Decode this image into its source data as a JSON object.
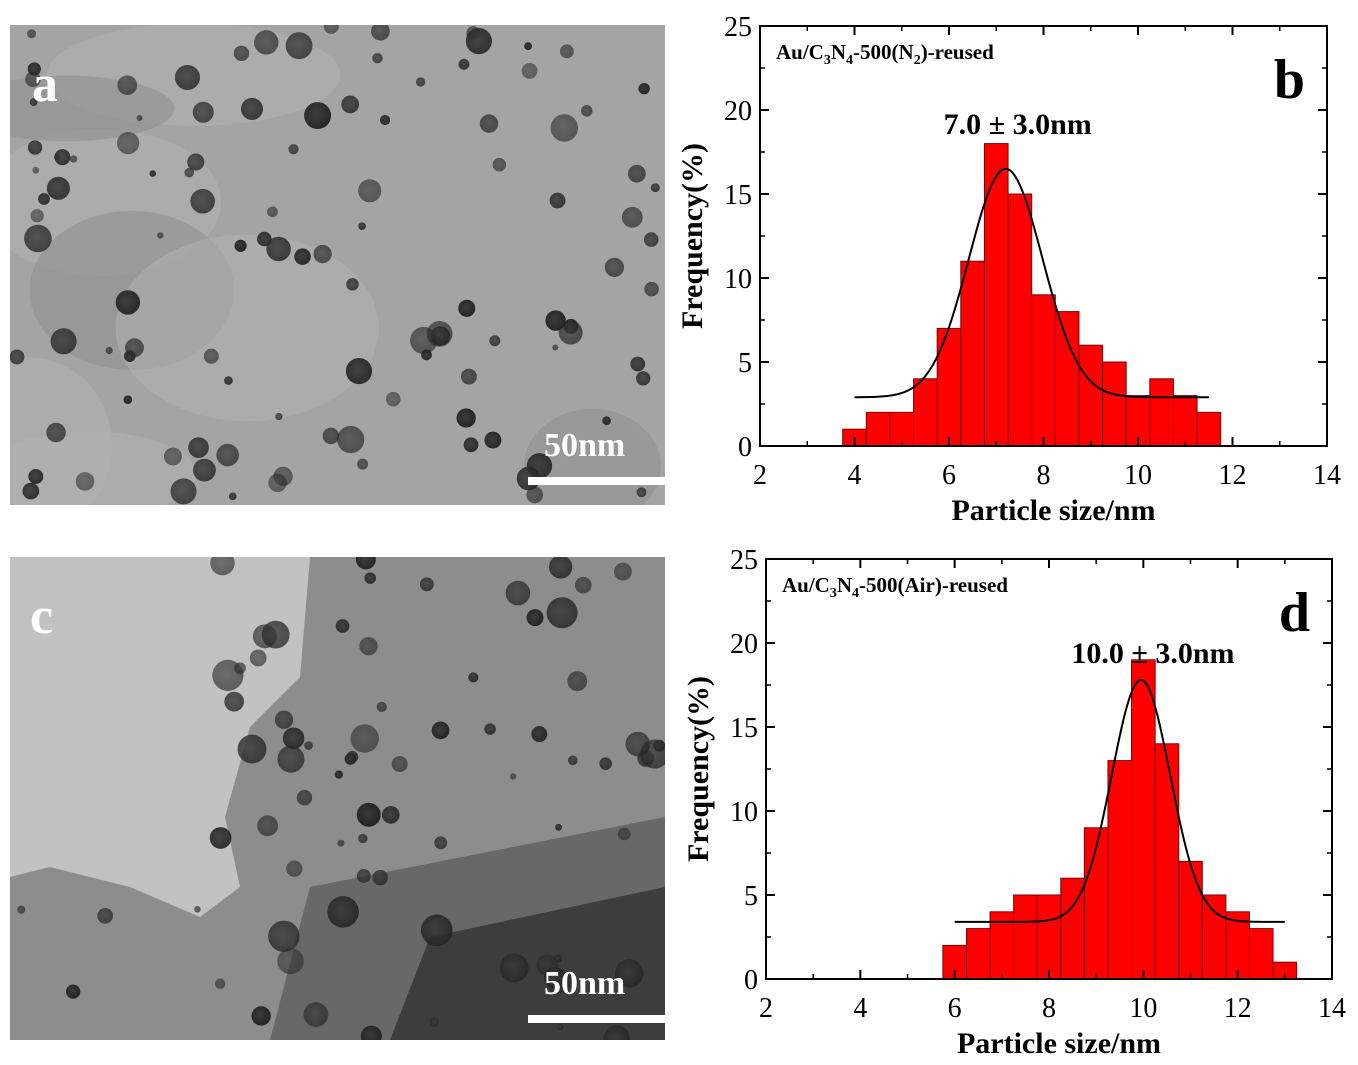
{
  "panels": {
    "a": {
      "letter": "a",
      "scale_label": "50nm"
    },
    "c": {
      "letter": "c",
      "scale_label": "50nm"
    }
  },
  "chart_data": [
    {
      "panel": "b",
      "type": "bar",
      "letter": "b",
      "annotation": "7.0 ± 3.0nm",
      "legend": {
        "prefix": "Au/C",
        "sub1": "3",
        "mid": "N",
        "sub2": "4",
        "suffix1": "-500(N",
        "sub3": "2",
        "suffix2": ")-reused"
      },
      "xlabel": "Particle size/nm",
      "ylabel": "Frequency(%)",
      "xlim": [
        2,
        14
      ],
      "ylim": [
        0,
        25
      ],
      "xticks": [
        2,
        4,
        6,
        8,
        10,
        12,
        14
      ],
      "yticks": [
        0,
        5,
        10,
        15,
        20,
        25
      ],
      "bar_width": 0.5,
      "x": [
        4.0,
        4.5,
        5.0,
        5.5,
        6.0,
        6.5,
        7.0,
        7.5,
        8.0,
        8.5,
        9.0,
        9.5,
        10.0,
        10.5,
        11.0,
        11.5
      ],
      "values": [
        1,
        2,
        2,
        4,
        7,
        11,
        18,
        15,
        9,
        8,
        6,
        5,
        3,
        4,
        3,
        2
      ],
      "fit": {
        "type": "gaussian",
        "baseline": 2.9,
        "amplitude": 13.6,
        "center": 7.2,
        "sigma": 0.78,
        "xrange": [
          4.0,
          11.5
        ]
      },
      "bar_color": "#ff0000"
    },
    {
      "panel": "d",
      "type": "bar",
      "letter": "d",
      "annotation": "10.0 ± 3.0nm",
      "legend": {
        "prefix": "Au/C",
        "sub1": "3",
        "mid": "N",
        "sub2": "4",
        "suffix1": "-500(Air)-reused",
        "sub3": "",
        "suffix2": ""
      },
      "xlabel": "Particle size/nm",
      "ylabel": "Frequency(%)",
      "xlim": [
        2,
        14
      ],
      "ylim": [
        0,
        25
      ],
      "xticks": [
        2,
        4,
        6,
        8,
        10,
        12,
        14
      ],
      "yticks": [
        0,
        5,
        10,
        15,
        20,
        25
      ],
      "bar_width": 0.5,
      "x": [
        6.0,
        6.5,
        7.0,
        7.5,
        8.0,
        8.5,
        9.0,
        9.5,
        10.0,
        10.5,
        11.0,
        11.5,
        12.0,
        12.5,
        13.0
      ],
      "values": [
        2,
        3,
        4,
        5,
        5,
        6,
        9,
        13,
        19,
        14,
        7,
        5,
        4,
        3,
        1
      ],
      "fit": {
        "type": "gaussian",
        "baseline": 3.4,
        "amplitude": 14.4,
        "center": 9.95,
        "sigma": 0.62,
        "xrange": [
          6.0,
          13.0
        ]
      },
      "bar_color": "#ff0000"
    }
  ]
}
